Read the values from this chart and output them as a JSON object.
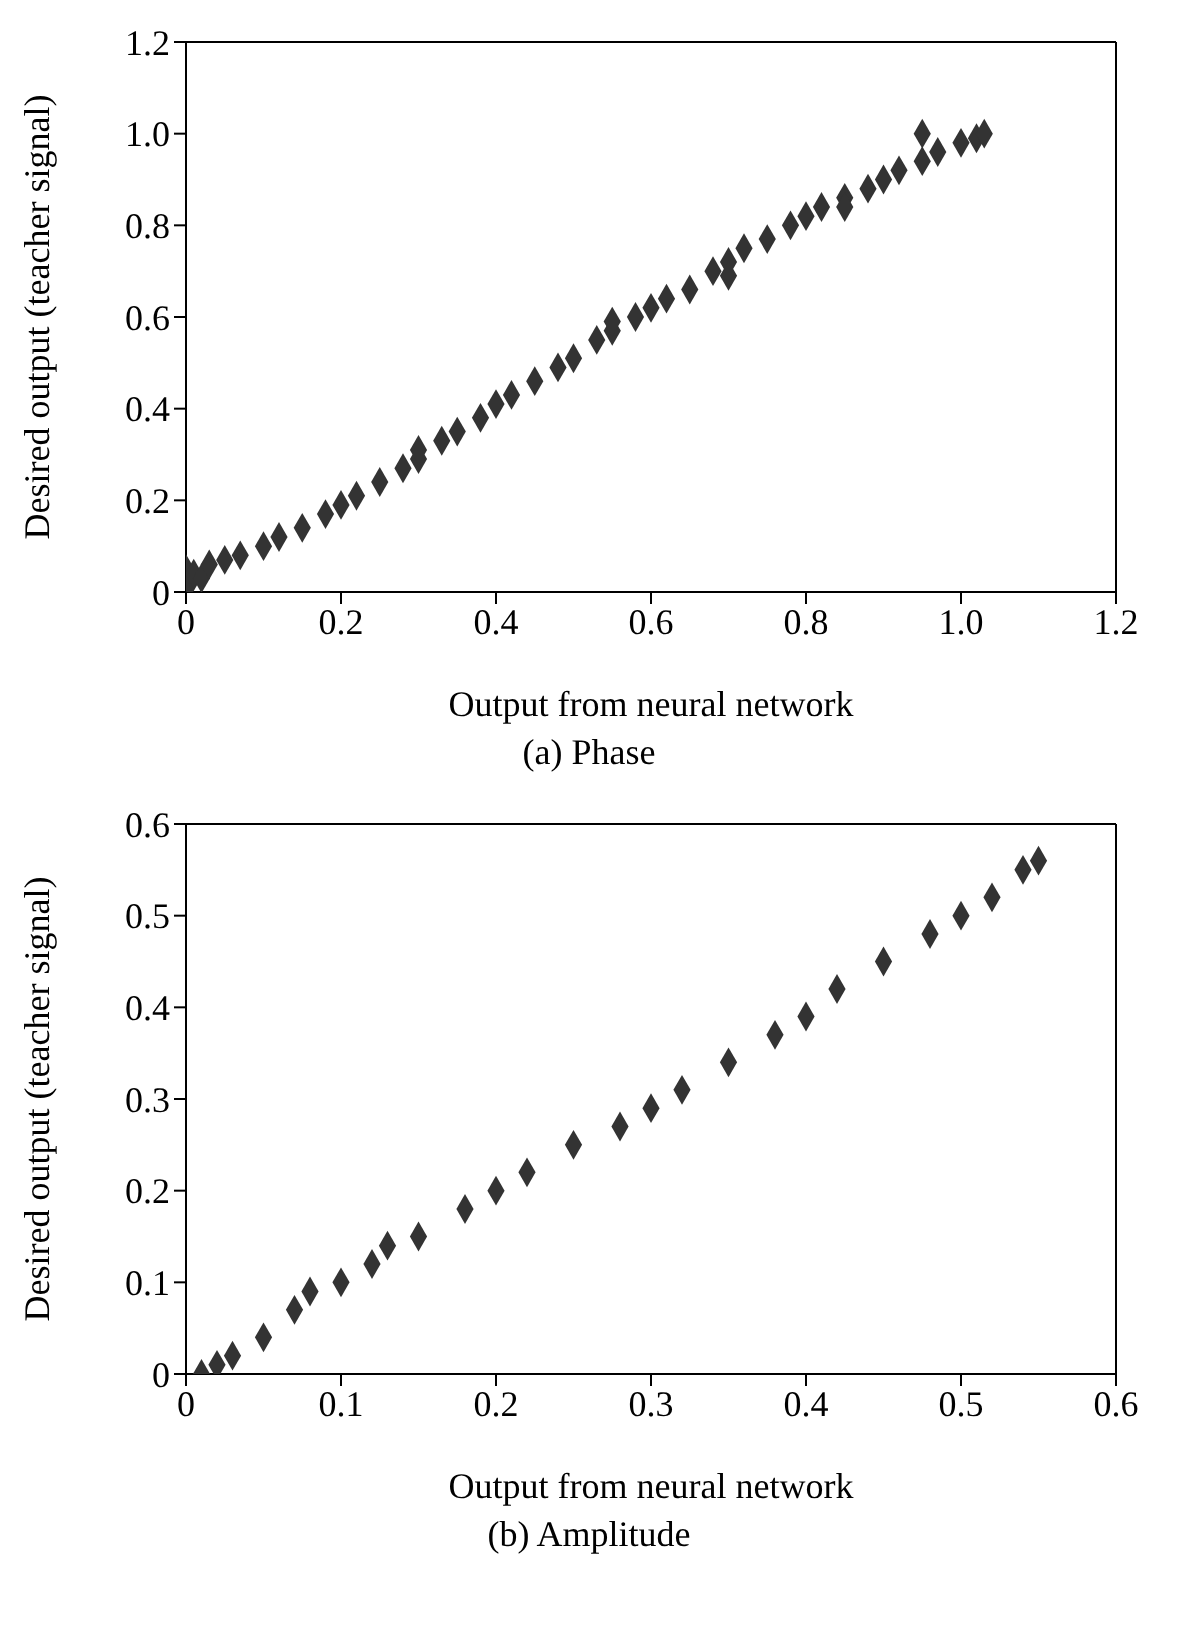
{
  "chart_data": [
    {
      "type": "scatter",
      "title": "(a) Phase",
      "xlabel": "Output from neural network",
      "ylabel": "Desired output (teacher signal)",
      "xlim": [
        0,
        1.2
      ],
      "ylim": [
        0,
        1.2
      ],
      "xticks": [
        0,
        0.2,
        0.4,
        0.6,
        0.8,
        {
          "value": 1,
          "label": "1.0"
        },
        1.2
      ],
      "yticks": [
        0,
        0.2,
        0.4,
        0.6,
        0.8,
        {
          "value": 1,
          "label": "1.0"
        },
        1.2
      ],
      "legend": false,
      "marker": "diamond",
      "series": [
        {
          "color": "#333333",
          "x": [
            0,
            0.005,
            0.01,
            0.02,
            0.03,
            0.05,
            0.07,
            0.1,
            0.12,
            0.15,
            0.18,
            0.2,
            0.22,
            0.25,
            0.28,
            0.3,
            0.3,
            0.33,
            0.35,
            0.38,
            0.4,
            0.42,
            0.45,
            0.48,
            0.5,
            0.53,
            0.55,
            0.55,
            0.58,
            0.6,
            0.62,
            0.65,
            0.68,
            0.7,
            0.7,
            0.72,
            0.75,
            0.78,
            0.8,
            0.82,
            0.85,
            0.85,
            0.88,
            0.9,
            0.92,
            0.95,
            0.95,
            0.97,
            1.0,
            1.02,
            1.03
          ],
          "values": [
            0.05,
            0.02,
            0.04,
            0.03,
            0.06,
            0.07,
            0.08,
            0.1,
            0.12,
            0.14,
            0.17,
            0.19,
            0.21,
            0.24,
            0.27,
            0.29,
            0.31,
            0.33,
            0.35,
            0.38,
            0.41,
            0.43,
            0.46,
            0.49,
            0.51,
            0.55,
            0.57,
            0.59,
            0.6,
            0.62,
            0.64,
            0.66,
            0.7,
            0.72,
            0.69,
            0.75,
            0.77,
            0.8,
            0.82,
            0.84,
            0.86,
            0.84,
            0.88,
            0.9,
            0.92,
            0.94,
            1.0,
            0.96,
            0.98,
            0.99,
            1.0
          ]
        }
      ]
    },
    {
      "type": "scatter",
      "title": "(b) Amplitude",
      "xlabel": "Output from neural network",
      "ylabel": "Desired output (teacher signal)",
      "xlim": [
        0,
        0.6
      ],
      "ylim": [
        0,
        0.6
      ],
      "xticks": [
        0,
        0.1,
        0.2,
        0.3,
        0.4,
        0.5,
        0.6
      ],
      "yticks": [
        0,
        0.1,
        0.2,
        0.3,
        0.4,
        0.5,
        0.6
      ],
      "legend": false,
      "marker": "diamond",
      "series": [
        {
          "color": "#333333",
          "x": [
            0.01,
            0.02,
            0.03,
            0.05,
            0.07,
            0.08,
            0.1,
            0.12,
            0.13,
            0.15,
            0.18,
            0.2,
            0.22,
            0.25,
            0.28,
            0.3,
            0.32,
            0.35,
            0.38,
            0.4,
            0.42,
            0.45,
            0.48,
            0.5,
            0.52,
            0.54,
            0.55
          ],
          "values": [
            0,
            0.01,
            0.02,
            0.04,
            0.07,
            0.09,
            0.1,
            0.12,
            0.14,
            0.15,
            0.18,
            0.2,
            0.22,
            0.25,
            0.27,
            0.29,
            0.31,
            0.34,
            0.37,
            0.39,
            0.42,
            0.45,
            0.48,
            0.5,
            0.52,
            0.55,
            0.56
          ]
        }
      ]
    }
  ]
}
